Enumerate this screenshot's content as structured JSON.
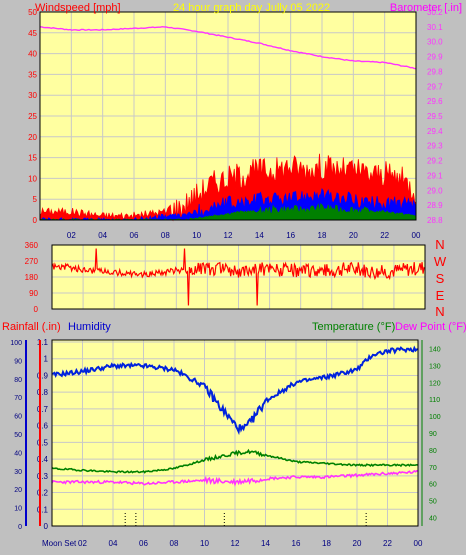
{
  "header": {
    "left": "Windspeed [mph]",
    "center": "24 hour graph day   Jully 05 2022",
    "right": "Barometer [.in]"
  },
  "mid": {
    "compass": [
      "N",
      "W",
      "S",
      "E",
      "N"
    ]
  },
  "bottom": {
    "rainfall_label": "Rainfall (.in)",
    "humidity_label": "Humidity",
    "temp_label": "Temperature (°F)",
    "dew_label": "Dew Point (°F)",
    "moon_label": "Moon Set"
  },
  "colors": {
    "plot_bg": "#ffffa0",
    "grid": "#c8c8c8",
    "wind": "#ff0000",
    "gust": "#0000ff",
    "calm": "#008000",
    "barometer": "#ff33ff",
    "humidity": "#0022dd",
    "temperature": "#008000",
    "dewpoint": "#ff33ff",
    "rain_axis": "#0000cc",
    "title": "#ffff00"
  },
  "chart_data": [
    {
      "type": "line",
      "id": "wind-baro",
      "x_ticks": [
        "02",
        "04",
        "06",
        "08",
        "10",
        "12",
        "14",
        "16",
        "18",
        "20",
        "22",
        "00"
      ],
      "y_left_ticks": [
        0,
        5,
        10,
        15,
        20,
        25,
        30,
        35,
        40,
        45,
        50
      ],
      "ylim_left": [
        0,
        50
      ],
      "y_right_ticks": [
        28.8,
        28.9,
        29,
        29.1,
        29.2,
        29.3,
        29.4,
        29.5,
        29.6,
        29.7,
        29.8,
        29.9,
        30,
        30.1,
        30.2
      ],
      "ylim_right": [
        28.8,
        30.2
      ],
      "series": [
        {
          "role": "wind",
          "x": [
            0,
            2,
            4,
            6,
            8,
            9,
            10,
            11,
            12,
            13,
            14,
            15,
            16,
            17,
            18,
            19,
            20,
            21,
            22,
            23,
            24
          ],
          "y": [
            2,
            2,
            1,
            1,
            2,
            3,
            6,
            9,
            10,
            11,
            12,
            12,
            13,
            12,
            13,
            12,
            12,
            11,
            11,
            10,
            7
          ]
        },
        {
          "role": "gust",
          "x": [
            0,
            2,
            4,
            6,
            8,
            9,
            10,
            11,
            12,
            13,
            14,
            15,
            16,
            17,
            18,
            19,
            20,
            21,
            22,
            23,
            24
          ],
          "y": [
            0,
            0,
            0,
            0,
            1,
            1,
            2,
            3,
            4,
            4,
            5,
            5,
            5,
            6,
            6,
            5,
            5,
            4,
            4,
            4,
            3
          ]
        },
        {
          "role": "calm",
          "x": [
            0,
            2,
            4,
            6,
            8,
            9,
            10,
            11,
            12,
            13,
            14,
            15,
            16,
            17,
            18,
            19,
            20,
            21,
            22,
            23,
            24
          ],
          "y": [
            0,
            0,
            0,
            0,
            0,
            0,
            0.5,
            1,
            1.5,
            2,
            2,
            2.5,
            2.5,
            2.5,
            3,
            2.5,
            2.5,
            2,
            2,
            1.5,
            1
          ]
        },
        {
          "role": "barometer",
          "x": [
            0,
            2,
            4,
            6,
            8,
            10,
            12,
            14,
            16,
            18,
            20,
            22,
            24
          ],
          "y": [
            30.1,
            30.08,
            30.08,
            30.09,
            30.1,
            30.07,
            30.03,
            29.99,
            29.94,
            29.9,
            29.87,
            29.86,
            29.82
          ]
        }
      ]
    },
    {
      "type": "scatter",
      "id": "wind-direction",
      "y_ticks": [
        0,
        90,
        180,
        270,
        360
      ],
      "ylim": [
        0,
        360
      ],
      "x": [
        0,
        1,
        2,
        3,
        4,
        5,
        6,
        7,
        8,
        9,
        10,
        11,
        12,
        13,
        14,
        15,
        16,
        17,
        18,
        19,
        20,
        21,
        22,
        23,
        24
      ],
      "y": [
        240,
        235,
        220,
        215,
        205,
        200,
        195,
        205,
        215,
        220,
        225,
        230,
        215,
        220,
        225,
        220,
        210,
        220,
        215,
        230,
        220,
        205,
        215,
        225,
        235
      ]
    },
    {
      "type": "line",
      "id": "rain-hum-temp",
      "x_ticks": [
        "02",
        "04",
        "06",
        "08",
        "10",
        "12",
        "14",
        "16",
        "18",
        "20",
        "22",
        "00"
      ],
      "y_rain_ticks": [
        0,
        0.1,
        0.2,
        0.3,
        0.4,
        0.5,
        0.6,
        0.7,
        0.8,
        0.9,
        1,
        1.1
      ],
      "ylim_rain": [
        0,
        1.1
      ],
      "y_hum_ticks": [
        0,
        10,
        20,
        30,
        40,
        50,
        60,
        70,
        80,
        90,
        100
      ],
      "ylim_hum": [
        0,
        100
      ],
      "y_temp_ticks": [
        40,
        50,
        60,
        70,
        80,
        90,
        100,
        110,
        120,
        130,
        140
      ],
      "ylim_temp": [
        35,
        145
      ],
      "series": [
        {
          "role": "humidity",
          "x": [
            0,
            2,
            4,
            6,
            8,
            10,
            11,
            12,
            12.5,
            13,
            14,
            16,
            18,
            20,
            21,
            22,
            23,
            24
          ],
          "y": [
            82,
            84,
            87,
            87,
            85,
            76,
            65,
            55,
            52,
            56,
            68,
            78,
            81,
            85,
            93,
            95,
            96,
            96
          ]
        },
        {
          "role": "temperature",
          "x": [
            0,
            2,
            4,
            6,
            8,
            10,
            12,
            13,
            14,
            16,
            18,
            20,
            22,
            24
          ],
          "y": [
            69,
            68,
            67,
            67,
            69,
            74,
            78,
            79,
            77,
            73,
            72,
            71,
            71,
            71
          ]
        },
        {
          "role": "dewpoint",
          "x": [
            0,
            2,
            4,
            6,
            8,
            10,
            12,
            13,
            14,
            16,
            18,
            20,
            22,
            24
          ],
          "y": [
            61,
            61,
            61,
            60,
            61,
            62,
            61,
            62,
            63,
            64,
            64,
            65,
            66,
            67
          ]
        }
      ],
      "rain_ticks_x": [
        4.8,
        5.5,
        11.3,
        20.6
      ]
    }
  ]
}
